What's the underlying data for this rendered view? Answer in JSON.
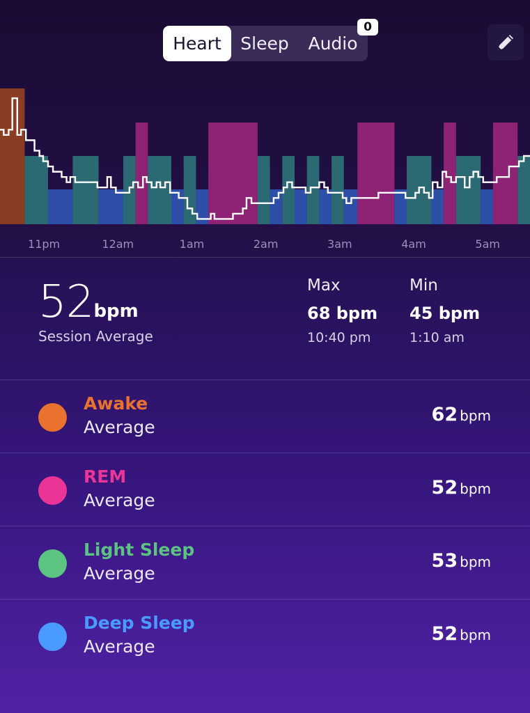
{
  "tabs": [
    {
      "label": "Heart",
      "selected": true
    },
    {
      "label": "Sleep",
      "selected": false
    },
    {
      "label": "Audio",
      "selected": false
    }
  ],
  "audio_badge": "0",
  "edit_icon": "pencil-icon",
  "chart_data": {
    "type": "line",
    "x_ticks": [
      "11pm",
      "12am",
      "1am",
      "2am",
      "3am",
      "4am",
      "5am"
    ],
    "stage_colors": {
      "awake": "#8a3d22",
      "rem": "#8e2274",
      "light": "#2c6a73",
      "deep": "#2e4fa8"
    },
    "stages": [
      {
        "stage": "awake",
        "start": "10:30 pm",
        "end": "10:50 pm"
      },
      {
        "stage": "light",
        "start": "10:50 pm",
        "end": "11:09 pm"
      },
      {
        "stage": "deep",
        "start": "11:09 pm",
        "end": "11:29 pm"
      },
      {
        "stage": "light",
        "start": "11:29 pm",
        "end": "11:50 pm"
      },
      {
        "stage": "deep",
        "start": "11:50 pm",
        "end": "12:10 am"
      },
      {
        "stage": "light",
        "start": "12:10 am",
        "end": "12:20 am"
      },
      {
        "stage": "rem",
        "start": "12:20 am",
        "end": "12:30 am"
      },
      {
        "stage": "light",
        "start": "12:30 am",
        "end": "12:49 am"
      },
      {
        "stage": "deep",
        "start": "12:49 am",
        "end": "12:59 am"
      },
      {
        "stage": "light",
        "start": "12:59 am",
        "end": "1:09 am"
      },
      {
        "stage": "deep",
        "start": "1:09 am",
        "end": "1:19 am"
      },
      {
        "stage": "rem",
        "start": "1:19 am",
        "end": "1:59 am"
      },
      {
        "stage": "light",
        "start": "1:59 am",
        "end": "2:09 am"
      },
      {
        "stage": "deep",
        "start": "2:09 am",
        "end": "2:19 am"
      },
      {
        "stage": "light",
        "start": "2:19 am",
        "end": "2:29 am"
      },
      {
        "stage": "deep",
        "start": "2:29 am",
        "end": "2:39 am"
      },
      {
        "stage": "light",
        "start": "2:39 am",
        "end": "2:49 am"
      },
      {
        "stage": "deep",
        "start": "2:49 am",
        "end": "2:59 am"
      },
      {
        "stage": "light",
        "start": "2:59 am",
        "end": "3:09 am"
      },
      {
        "stage": "deep",
        "start": "3:09 am",
        "end": "3:20 am"
      },
      {
        "stage": "rem",
        "start": "3:20 am",
        "end": "3:50 am"
      },
      {
        "stage": "deep",
        "start": "3:50 am",
        "end": "4:00 am"
      },
      {
        "stage": "light",
        "start": "4:00 am",
        "end": "4:20 am"
      },
      {
        "stage": "deep",
        "start": "4:20 am",
        "end": "4:30 am"
      },
      {
        "stage": "rem",
        "start": "4:30 am",
        "end": "4:40 am"
      },
      {
        "stage": "light",
        "start": "4:40 am",
        "end": "5:00 am"
      },
      {
        "stage": "deep",
        "start": "5:00 am",
        "end": "5:10 am"
      },
      {
        "stage": "rem",
        "start": "5:10 am",
        "end": "5:30 am"
      },
      {
        "stage": "light",
        "start": "5:30 am",
        "end": "5:40 am"
      }
    ],
    "heart_rate": [
      [
        "10:30 pm",
        62
      ],
      [
        "10:33 pm",
        61
      ],
      [
        "10:37 pm",
        62
      ],
      [
        "10:40 pm",
        68
      ],
      [
        "10:44 pm",
        61
      ],
      [
        "10:47 pm",
        62
      ],
      [
        "10:51 pm",
        60
      ],
      [
        "10:54 pm",
        60
      ],
      [
        "10:58 pm",
        58
      ],
      [
        "11:02 pm",
        57
      ],
      [
        "11:05 pm",
        56
      ],
      [
        "11:09 pm",
        55
      ],
      [
        "11:13 pm",
        54
      ],
      [
        "11:16 pm",
        54
      ],
      [
        "11:20 pm",
        53
      ],
      [
        "11:24 pm",
        52
      ],
      [
        "11:27 pm",
        53
      ],
      [
        "11:31 pm",
        52
      ],
      [
        "11:35 pm",
        52
      ],
      [
        "11:38 pm",
        52
      ],
      [
        "11:42 pm",
        52
      ],
      [
        "11:46 pm",
        52
      ],
      [
        "11:49 pm",
        51
      ],
      [
        "11:53 pm",
        51
      ],
      [
        "11:57 pm",
        53
      ],
      [
        "12:00 am",
        51
      ],
      [
        "12:04 am",
        50
      ],
      [
        "12:08 am",
        50
      ],
      [
        "12:11 am",
        50
      ],
      [
        "12:15 am",
        51
      ],
      [
        "12:18 am",
        52
      ],
      [
        "12:22 am",
        51
      ],
      [
        "12:26 am",
        53
      ],
      [
        "12:29 am",
        52
      ],
      [
        "12:33 am",
        51
      ],
      [
        "12:37 am",
        52
      ],
      [
        "12:40 am",
        51
      ],
      [
        "12:44 am",
        52
      ],
      [
        "12:48 am",
        50
      ],
      [
        "12:51 am",
        50
      ],
      [
        "12:55 am",
        49
      ],
      [
        "12:59 am",
        49
      ],
      [
        "1:02 am",
        47
      ],
      [
        "1:06 am",
        46
      ],
      [
        "1:10 am",
        45
      ],
      [
        "1:13 am",
        45
      ],
      [
        "1:17 am",
        45
      ],
      [
        "1:21 am",
        46
      ],
      [
        "1:24 am",
        45
      ],
      [
        "1:28 am",
        45
      ],
      [
        "1:32 am",
        45
      ],
      [
        "1:36 am",
        45
      ],
      [
        "1:39 am",
        46
      ],
      [
        "1:43 am",
        46
      ],
      [
        "1:47 am",
        47
      ],
      [
        "1:50 am",
        49
      ],
      [
        "1:54 am",
        48
      ],
      [
        "1:58 am",
        48
      ],
      [
        "2:01 am",
        48
      ],
      [
        "2:05 am",
        48
      ],
      [
        "2:09 am",
        48
      ],
      [
        "2:12 am",
        49
      ],
      [
        "2:16 am",
        50
      ],
      [
        "2:20 am",
        51
      ],
      [
        "2:23 am",
        52
      ],
      [
        "2:27 am",
        51
      ],
      [
        "2:31 am",
        51
      ],
      [
        "2:35 am",
        51
      ],
      [
        "2:38 am",
        50
      ],
      [
        "2:42 am",
        51
      ],
      [
        "2:46 am",
        51
      ],
      [
        "2:49 am",
        52
      ],
      [
        "2:53 am",
        51
      ],
      [
        "2:56 am",
        50
      ],
      [
        "3:00 am",
        50
      ],
      [
        "3:04 am",
        50
      ],
      [
        "3:08 am",
        49
      ],
      [
        "3:11 am",
        48
      ],
      [
        "3:15 am",
        49
      ],
      [
        "3:19 am",
        49
      ],
      [
        "3:22 am",
        49
      ],
      [
        "3:26 am",
        49
      ],
      [
        "3:30 am",
        49
      ],
      [
        "3:34 am",
        49
      ],
      [
        "3:37 am",
        50
      ],
      [
        "3:41 am",
        50
      ],
      [
        "3:45 am",
        50
      ],
      [
        "3:48 am",
        50
      ],
      [
        "3:52 am",
        50
      ],
      [
        "3:56 am",
        50
      ],
      [
        "3:59 am",
        49
      ],
      [
        "4:03 am",
        49
      ],
      [
        "4:07 am",
        50
      ],
      [
        "4:10 am",
        51
      ],
      [
        "4:14 am",
        50
      ],
      [
        "4:18 am",
        49
      ],
      [
        "4:21 am",
        52
      ],
      [
        "4:25 am",
        51
      ],
      [
        "4:29 am",
        54
      ],
      [
        "4:32 am",
        53
      ],
      [
        "4:36 am",
        52
      ],
      [
        "4:40 am",
        53
      ],
      [
        "4:43 am",
        53
      ],
      [
        "4:47 am",
        51
      ],
      [
        "4:51 am",
        53
      ],
      [
        "4:54 am",
        54
      ],
      [
        "4:58 am",
        53
      ],
      [
        "5:02 am",
        52
      ],
      [
        "5:05 am",
        52
      ],
      [
        "5:09 am",
        52
      ],
      [
        "5:13 am",
        53
      ],
      [
        "5:16 am",
        53
      ],
      [
        "5:20 am",
        53
      ],
      [
        "5:23 am",
        55
      ],
      [
        "5:27 am",
        55
      ],
      [
        "5:31 am",
        56
      ],
      [
        "5:35 am",
        57
      ],
      [
        "5:40 am",
        57
      ]
    ],
    "ylim": [
      44,
      70
    ]
  },
  "summary": {
    "average_value": "52",
    "average_unit": "bpm",
    "average_label": "Session Average",
    "max_label": "Max",
    "max_value": "68 bpm",
    "max_time": "10:40 pm",
    "min_label": "Min",
    "min_value": "45 bpm",
    "min_time": "1:10 am"
  },
  "stage_rows": [
    {
      "name": "Awake",
      "sub": "Average",
      "value": "62",
      "unit": "bpm",
      "color": "#e8722e"
    },
    {
      "name": "REM",
      "sub": "Average",
      "value": "52",
      "unit": "bpm",
      "color": "#ea3596"
    },
    {
      "name": "Light Sleep",
      "sub": "Average",
      "value": "53",
      "unit": "bpm",
      "color": "#5cc382"
    },
    {
      "name": "Deep Sleep",
      "sub": "Average",
      "value": "52",
      "unit": "bpm",
      "color": "#4a9bff"
    }
  ]
}
